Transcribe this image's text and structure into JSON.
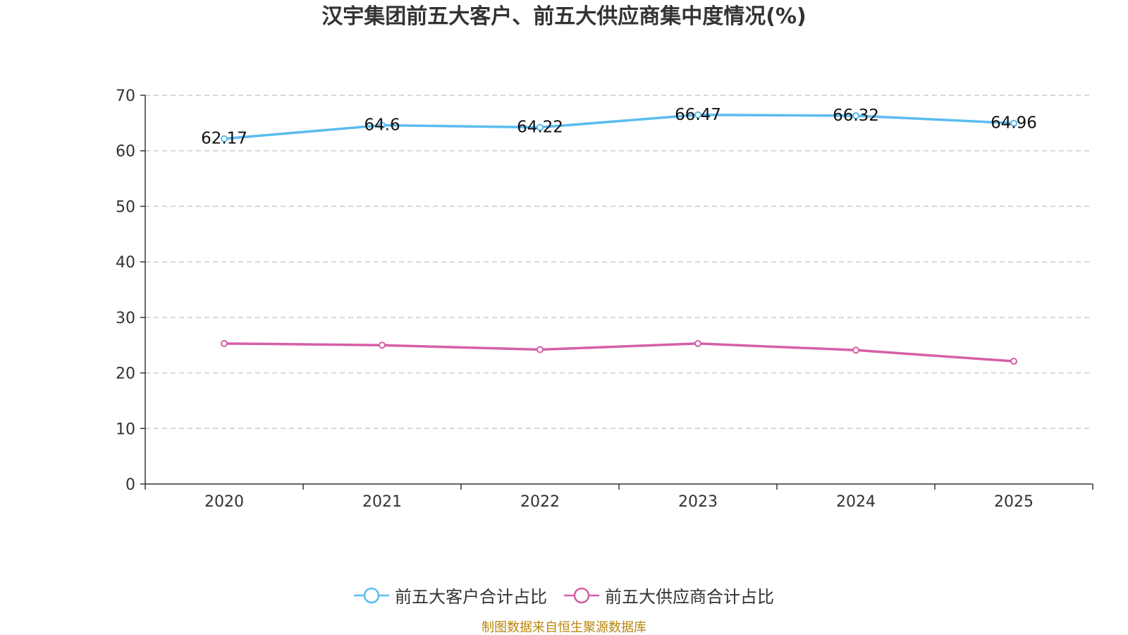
{
  "source_note": "制图数据来自恒生聚源数据库",
  "colors": {
    "customers": "#5bbcf0",
    "suppliers": "#d65fa8",
    "axis": "#333333",
    "grid": "#cccccc",
    "source": "#b8860b"
  },
  "chart_data": {
    "type": "line",
    "title": "汉宇集团前五大客户、前五大供应商集中度情况(%)",
    "xlabel": "",
    "ylabel": "",
    "categories": [
      "2020",
      "2021",
      "2022",
      "2023",
      "2024",
      "2025"
    ],
    "ylim": [
      0,
      70
    ],
    "yticks": [
      0,
      10,
      20,
      30,
      40,
      50,
      60,
      70
    ],
    "grid": true,
    "legend_position": "bottom-center",
    "series": [
      {
        "name": "前五大客户合计占比",
        "values": [
          62.17,
          64.6,
          64.22,
          66.47,
          66.32,
          64.96
        ],
        "labels": [
          "62.17",
          "64.6",
          "64.22",
          "66.47",
          "66.32",
          "64.96"
        ],
        "show_labels": true
      },
      {
        "name": "前五大供应商合计占比",
        "values": [
          25.3,
          25.0,
          24.2,
          25.3,
          24.1,
          22.1
        ],
        "show_labels": false
      }
    ]
  }
}
